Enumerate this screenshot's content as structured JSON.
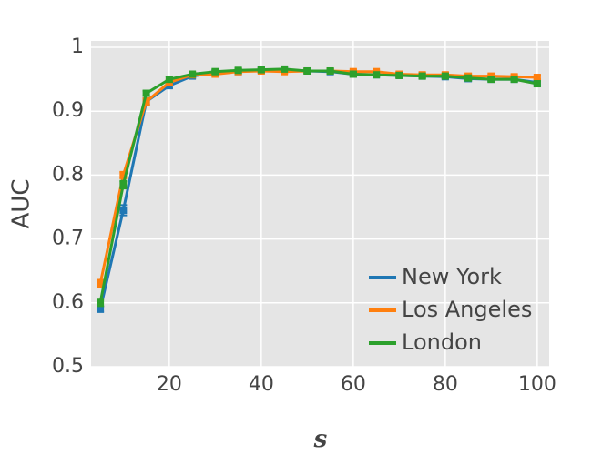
{
  "chart_data": {
    "type": "line",
    "xlabel": "s",
    "ylabel": "AUC",
    "x": [
      5,
      10,
      15,
      20,
      25,
      30,
      35,
      40,
      45,
      50,
      55,
      60,
      65,
      70,
      75,
      80,
      85,
      90,
      95,
      100
    ],
    "series": [
      {
        "name": "New York",
        "color": "#1f77b4",
        "values": [
          0.59,
          0.745,
          0.915,
          0.94,
          0.955,
          0.96,
          0.962,
          0.965,
          0.965,
          0.963,
          0.962,
          0.958,
          0.957,
          0.956,
          0.955,
          0.954,
          0.951,
          0.95,
          0.95,
          0.945
        ],
        "errors": [
          0.004,
          0.008,
          0.005,
          0.004,
          0.003,
          0.003,
          0.003,
          0.003,
          0.003,
          0.003,
          0.003,
          0.003,
          0.003,
          0.003,
          0.003,
          0.003,
          0.003,
          0.003,
          0.003,
          0.004
        ]
      },
      {
        "name": "Los Angeles",
        "color": "#ff7f0e",
        "values": [
          0.63,
          0.8,
          0.915,
          0.945,
          0.957,
          0.958,
          0.962,
          0.963,
          0.962,
          0.963,
          0.963,
          0.962,
          0.962,
          0.958,
          0.957,
          0.957,
          0.955,
          0.955,
          0.954,
          0.953
        ],
        "errors": [
          0.006,
          0.005,
          0.005,
          0.004,
          0.003,
          0.003,
          0.003,
          0.003,
          0.003,
          0.003,
          0.003,
          0.003,
          0.003,
          0.003,
          0.003,
          0.003,
          0.003,
          0.003,
          0.003,
          0.003
        ]
      },
      {
        "name": "London",
        "color": "#2ca02c",
        "values": [
          0.6,
          0.785,
          0.928,
          0.95,
          0.958,
          0.962,
          0.964,
          0.965,
          0.966,
          0.963,
          0.963,
          0.958,
          0.957,
          0.956,
          0.955,
          0.955,
          0.952,
          0.95,
          0.95,
          0.943
        ],
        "errors": [
          0.005,
          0.006,
          0.004,
          0.004,
          0.003,
          0.003,
          0.003,
          0.003,
          0.003,
          0.003,
          0.003,
          0.003,
          0.003,
          0.003,
          0.003,
          0.003,
          0.003,
          0.003,
          0.003,
          0.004
        ]
      }
    ],
    "xlim": [
      3,
      102.6
    ],
    "xticks": [
      20,
      40,
      60,
      80,
      100
    ],
    "ylim": [
      0.5,
      1.01
    ],
    "yticks": [
      0.5,
      0.6,
      0.7,
      0.8,
      0.9,
      1
    ],
    "grid": true,
    "legend": "lower right"
  }
}
